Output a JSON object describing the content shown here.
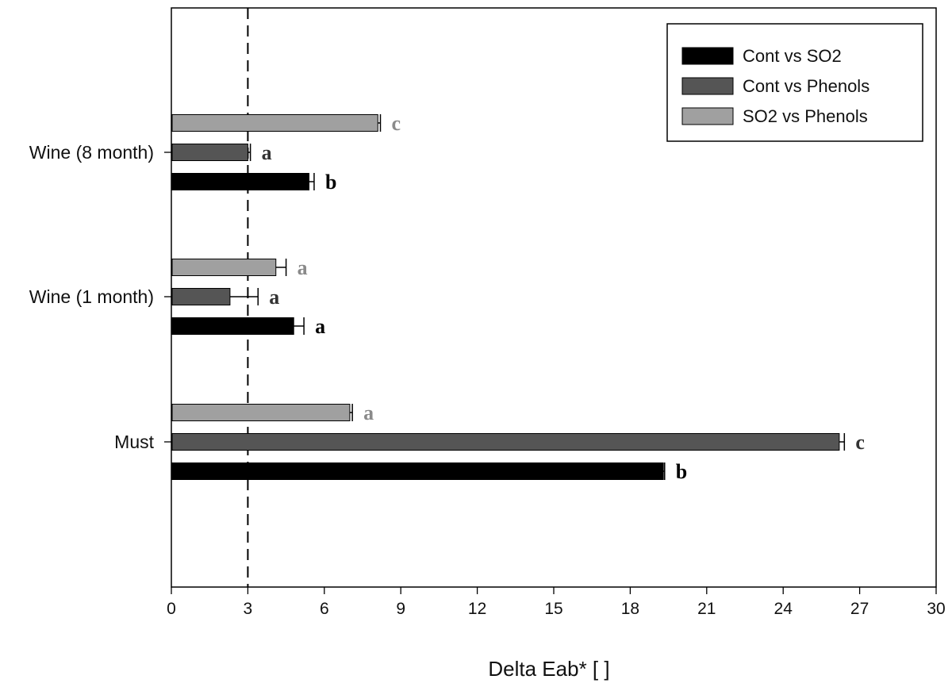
{
  "chart_data": {
    "type": "bar",
    "orientation": "horizontal",
    "xlabel": "Delta Eab* [  ]",
    "ylabel": "",
    "xlim": [
      0,
      30
    ],
    "xticks": [
      "0",
      "3",
      "6",
      "9",
      "12",
      "15",
      "18",
      "21",
      "24",
      "27",
      "30"
    ],
    "categories": [
      "Wine (8 month)",
      "Wine (1 month)",
      "Must"
    ],
    "reference_line": {
      "x": 3,
      "style": "dashed"
    },
    "legend_position": "top-right",
    "series": [
      {
        "name": "SO2 vs Phenols",
        "color": "#a0a0a0",
        "label_color": "#8a8a8a",
        "values": [
          8.1,
          4.1,
          7.0
        ],
        "errors": [
          0.1,
          0.4,
          0.1
        ],
        "letters": [
          "c",
          "a",
          "a"
        ]
      },
      {
        "name": "Cont vs Phenols",
        "color": "#555555",
        "label_color": "#333333",
        "values": [
          3.0,
          2.3,
          26.2
        ],
        "errors": [
          0.1,
          1.1,
          0.2
        ],
        "letters": [
          "a",
          "a",
          "c"
        ]
      },
      {
        "name": "Cont vs SO2",
        "color": "#000000",
        "label_color": "#000000",
        "values": [
          5.4,
          4.8,
          19.3
        ],
        "errors": [
          0.2,
          0.4,
          0.05
        ],
        "letters": [
          "b",
          "a",
          "b"
        ]
      }
    ],
    "legend_order": [
      "Cont vs SO2",
      "Cont vs Phenols",
      "SO2 vs Phenols"
    ]
  }
}
